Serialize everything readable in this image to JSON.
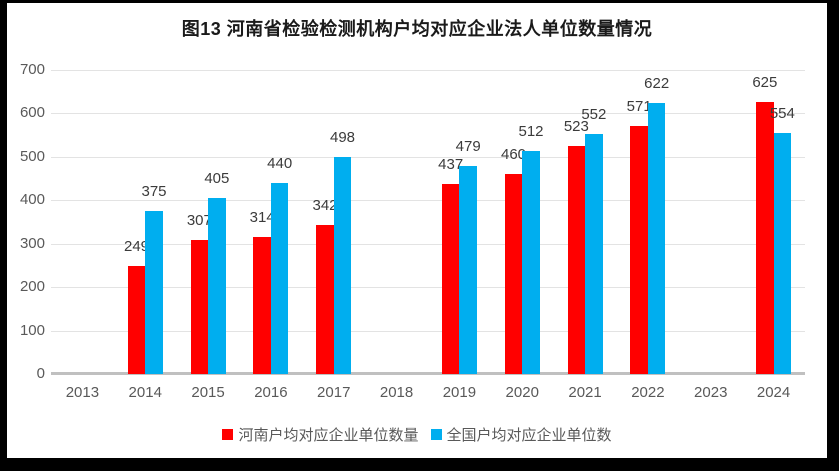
{
  "frame": {
    "background": "#000000",
    "panel_background": "#ffffff"
  },
  "chart_data": {
    "type": "bar",
    "title": "图13  河南省检验检测机构户均对应企业法人单位数量情况",
    "categories": [
      "2013",
      "2014",
      "2015",
      "2016",
      "2017",
      "2018",
      "2019",
      "2020",
      "2021",
      "2022",
      "2023",
      "2024"
    ],
    "series": [
      {
        "name": "河南户均对应企业单位数量",
        "color": "#ff0000",
        "values": [
          null,
          249,
          307,
          314,
          342,
          null,
          437,
          460,
          523,
          571,
          null,
          625
        ]
      },
      {
        "name": "全国户均对应企业单位数",
        "color": "#00aeef",
        "values": [
          null,
          375,
          405,
          440,
          498,
          null,
          479,
          512,
          552,
          622,
          null,
          554
        ]
      }
    ],
    "xlabel": "",
    "ylabel": "",
    "ylim": [
      0,
      700
    ],
    "ytick_step": 100,
    "grid": true,
    "legend_position": "bottom",
    "data_labels": true
  },
  "style": {
    "gridline_color": "#e3e3e3",
    "axis_line_color": "#c0c0c0",
    "tick_label_color": "#595959",
    "data_label_color": "#3b3b3b",
    "title_color": "#1a1a1a"
  }
}
